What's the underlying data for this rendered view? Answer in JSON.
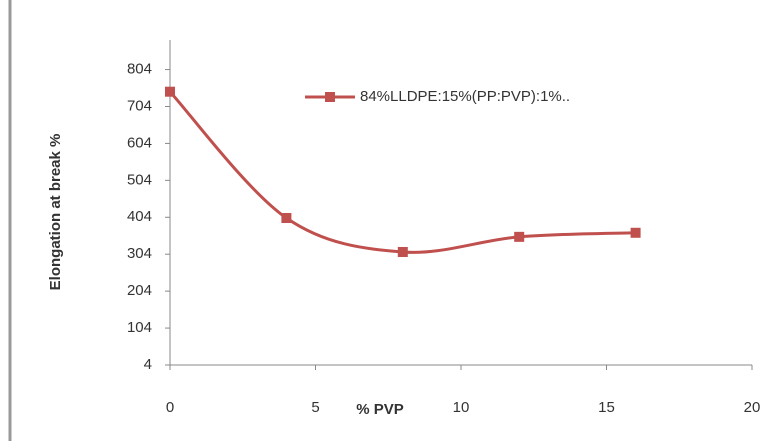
{
  "chart_data": {
    "type": "line",
    "x_label": "% PVP",
    "y_label": "Elongation at break %",
    "x": [
      0,
      4,
      8,
      12,
      16
    ],
    "series": [
      {
        "name": "84%LLDPE:15%(PP:PVP):1%..",
        "color": "#c0504d",
        "values": [
          744,
          402,
          310,
          351,
          362
        ]
      }
    ],
    "xlim": [
      0,
      20
    ],
    "xticks": [
      0,
      5,
      10,
      15,
      20
    ],
    "ylim": [
      4,
      884
    ],
    "yticks": [
      4,
      104,
      204,
      304,
      404,
      504,
      604,
      704,
      804
    ],
    "smooth": true,
    "legend": "top"
  }
}
